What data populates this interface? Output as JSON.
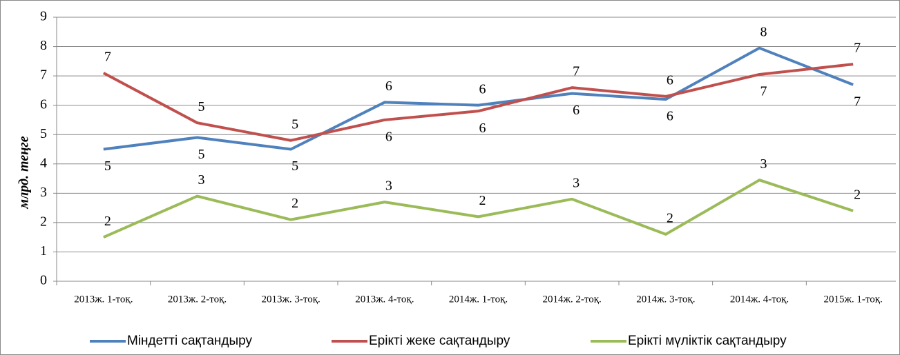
{
  "chart_data": {
    "type": "line",
    "y_label": "млрд. теңге",
    "categories": [
      "2013ж. 1-тоқ.",
      "2013ж. 2-тоқ.",
      "2013ж. 3-тоқ.",
      "2013ж. 4-тоқ.",
      "2014ж. 1-тоқ.",
      "2014ж. 2-тоқ.",
      "2014ж. 3-тоқ.",
      "2014ж. 4-тоқ.",
      "2015ж. 1-тоқ."
    ],
    "series": [
      {
        "name": "Міндетті сақтандыру",
        "color": "#4f81bd",
        "values": [
          4.5,
          4.9,
          4.5,
          6.1,
          6.0,
          6.4,
          6.2,
          7.95,
          6.7
        ],
        "value_labels": [
          "5",
          "5",
          "5",
          "6",
          "6",
          "6",
          "6",
          "8",
          "7"
        ]
      },
      {
        "name": "Ерікті жеке сақтандыру",
        "color": "#c0504d",
        "values": [
          7.1,
          5.4,
          4.8,
          5.5,
          5.8,
          6.6,
          6.3,
          7.05,
          7.4
        ],
        "value_labels": [
          "7",
          "5",
          "5",
          "6",
          "6",
          "7",
          "6",
          "7",
          "7"
        ]
      },
      {
        "name": "Ерікті мүліктік сақтандыру",
        "color": "#9bbb59",
        "values": [
          1.5,
          2.9,
          2.1,
          2.7,
          2.2,
          2.8,
          1.6,
          3.45,
          2.4
        ],
        "value_labels": [
          "2",
          "3",
          "2",
          "3",
          "2",
          "3",
          "2",
          "3",
          "2"
        ]
      }
    ],
    "ylim": [
      0,
      9
    ],
    "yticks": [
      0,
      1,
      2,
      3,
      4,
      5,
      6,
      7,
      8,
      9
    ],
    "grid": true,
    "legend": "bottom"
  }
}
